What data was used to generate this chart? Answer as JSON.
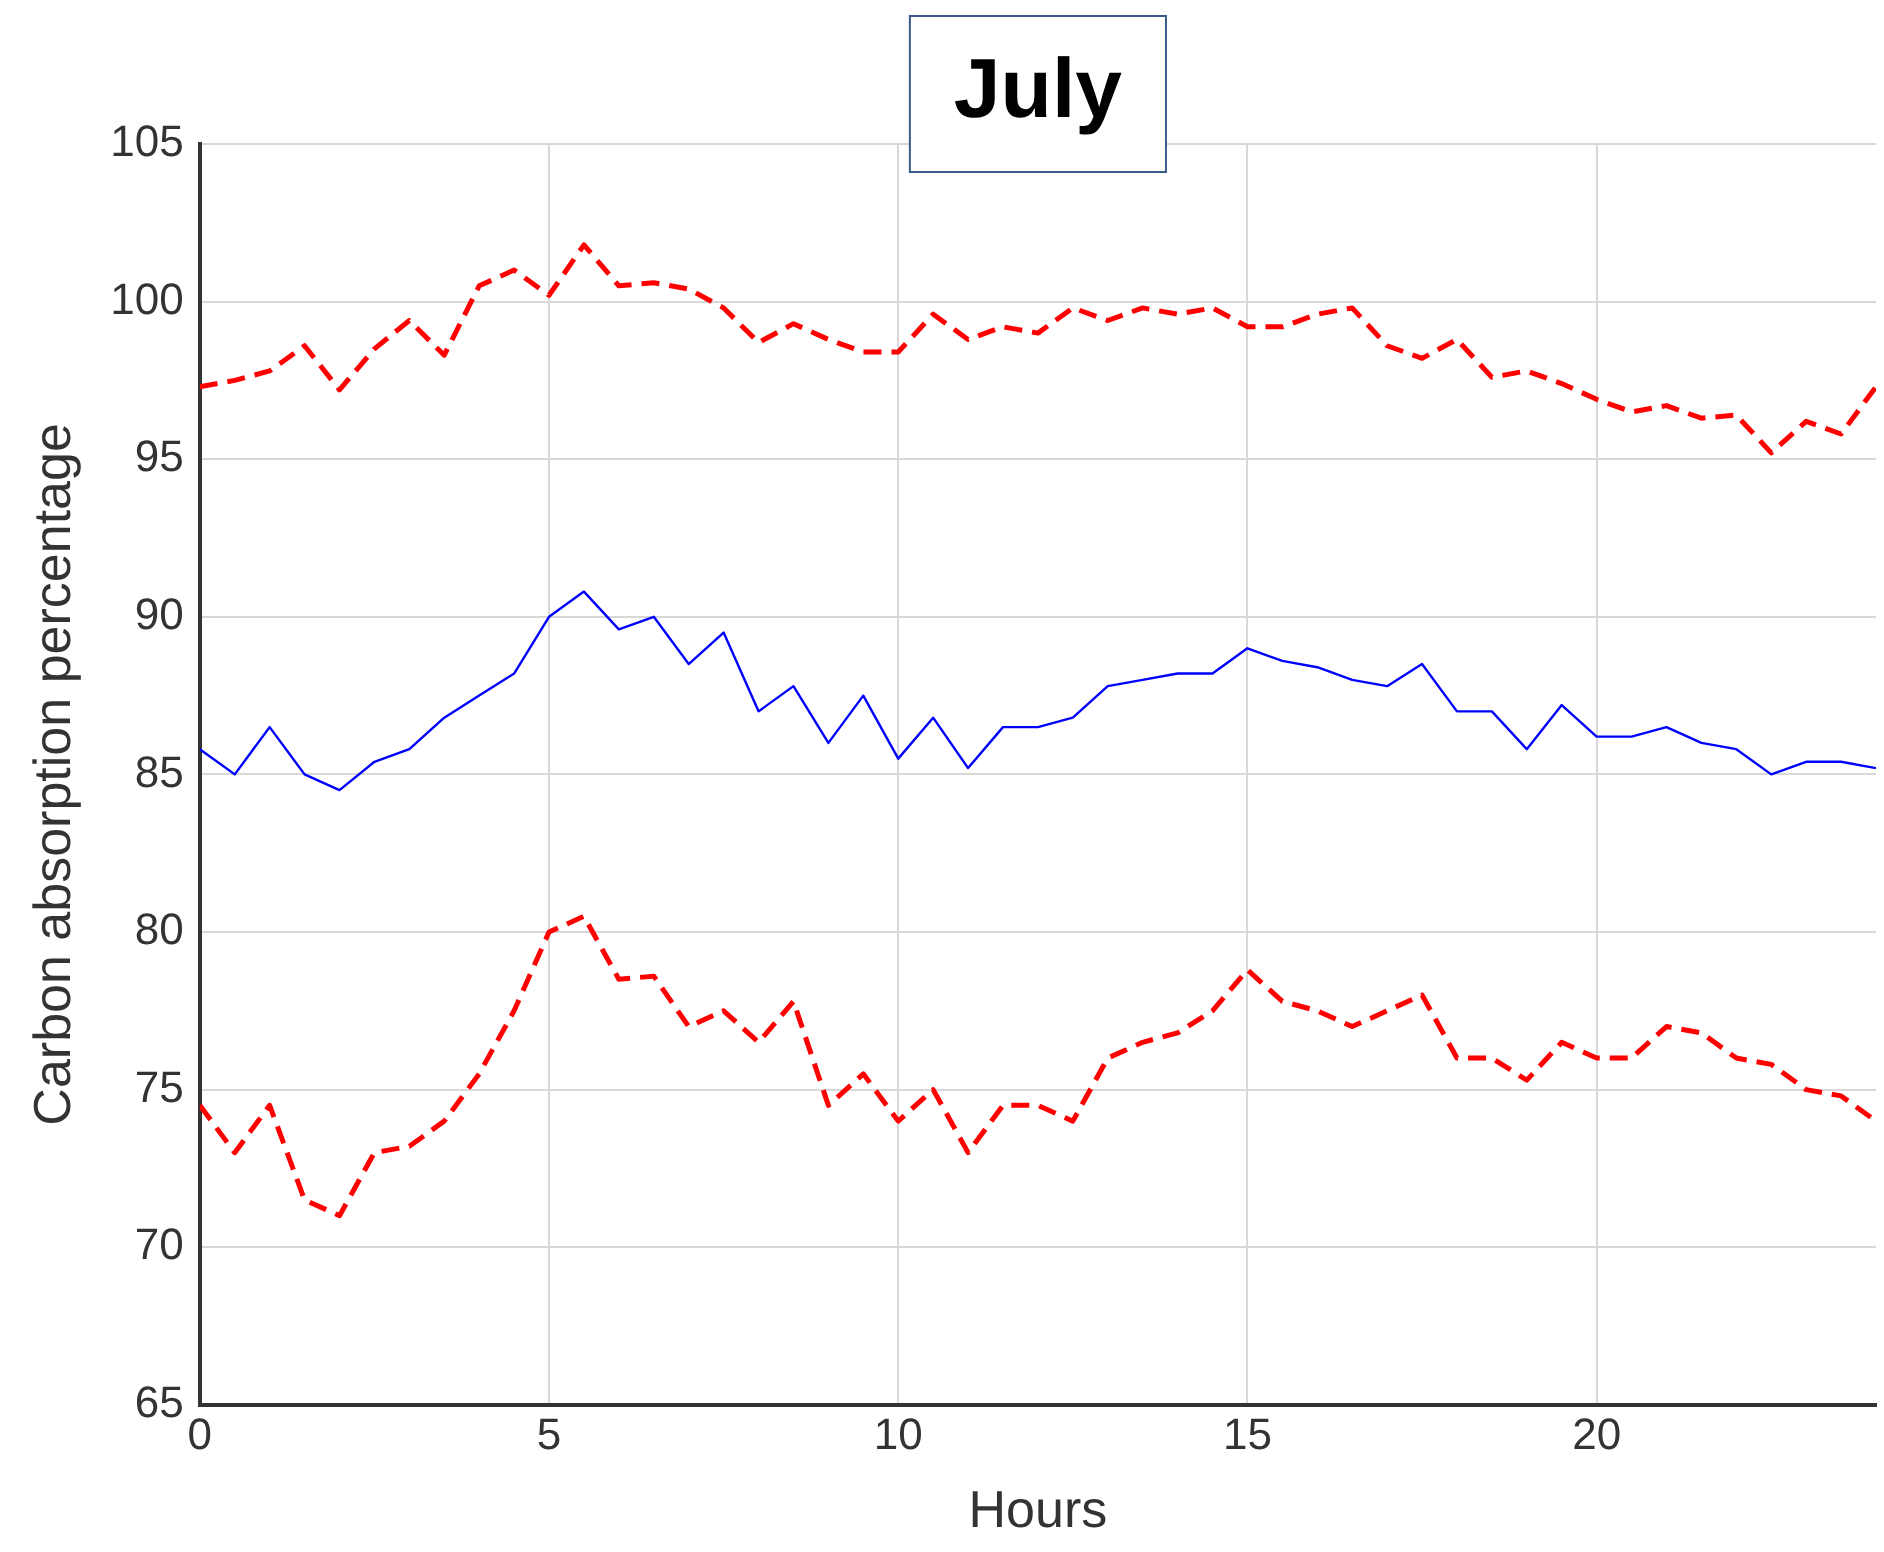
{
  "chart_data": {
    "type": "line",
    "title": "July",
    "xlabel": "Hours",
    "ylabel": "Carbon absorption percentage",
    "x": [
      0,
      0.5,
      1,
      1.5,
      2,
      2.5,
      3,
      3.5,
      4,
      4.5,
      5,
      5.5,
      6,
      6.5,
      7,
      7.5,
      8,
      8.5,
      9,
      9.5,
      10,
      10.5,
      11,
      11.5,
      12,
      12.5,
      13,
      13.5,
      14,
      14.5,
      15,
      15.5,
      16,
      16.5,
      17,
      17.5,
      18,
      18.5,
      19,
      19.5,
      20,
      20.5,
      21,
      21.5,
      22,
      22.5,
      23,
      23.5,
      24
    ],
    "series": [
      {
        "color": "#ff0000",
        "line_style": "dashed",
        "values": [
          97.3,
          97.5,
          97.8,
          98.6,
          97.2,
          98.5,
          99.4,
          98.3,
          100.5,
          101,
          100.2,
          101.8,
          100.5,
          100.6,
          100.4,
          99.8,
          98.7,
          99.3,
          98.8,
          98.4,
          98.4,
          99.6,
          98.8,
          99.2,
          99,
          99.8,
          99.4,
          99.8,
          99.6,
          99.8,
          99.2,
          99.2,
          99.6,
          99.8,
          98.6,
          98.2,
          98.8,
          97.6,
          97.8,
          97.4,
          96.9,
          96.5,
          96.7,
          96.3,
          96.4,
          95.2,
          96.2,
          95.8,
          97.3
        ]
      },
      {
        "color": "#0000ff",
        "line_style": "solid",
        "values": [
          85.8,
          85,
          86.5,
          85,
          84.5,
          85.4,
          85.8,
          86.8,
          87.5,
          88.2,
          90,
          90.8,
          89.6,
          90,
          88.5,
          89.5,
          87,
          87.8,
          86,
          87.5,
          85.5,
          86.8,
          85.2,
          86.5,
          86.5,
          86.8,
          87.8,
          88,
          88.2,
          88.2,
          89,
          88.6,
          88.4,
          88,
          87.8,
          88.5,
          87,
          87,
          85.8,
          87.2,
          86.2,
          86.2,
          86.5,
          86,
          85.8,
          85,
          85.4,
          85.4,
          85.2
        ]
      },
      {
        "color": "#ff0000",
        "line_style": "dashed",
        "values": [
          74.5,
          73,
          74.5,
          71.5,
          71,
          73,
          73.2,
          74,
          75.5,
          77.5,
          80,
          80.5,
          78.5,
          78.6,
          77,
          77.5,
          76.5,
          77.8,
          74.5,
          75.5,
          74,
          75,
          73,
          74.5,
          74.5,
          74,
          76,
          76.5,
          76.8,
          77.5,
          78.8,
          77.8,
          77.5,
          77,
          77.5,
          78,
          76,
          76,
          75.3,
          76.5,
          76,
          76,
          77,
          76.8,
          76,
          75.8,
          75,
          74.8,
          74
        ]
      }
    ],
    "xlim": [
      0,
      24
    ],
    "xticks": [
      0,
      5,
      10,
      15,
      20
    ],
    "ylim": [
      65,
      105
    ],
    "yticks": [
      65,
      70,
      75,
      80,
      85,
      90,
      95,
      100,
      105
    ],
    "grid": true,
    "legend": false,
    "marker": "none"
  }
}
